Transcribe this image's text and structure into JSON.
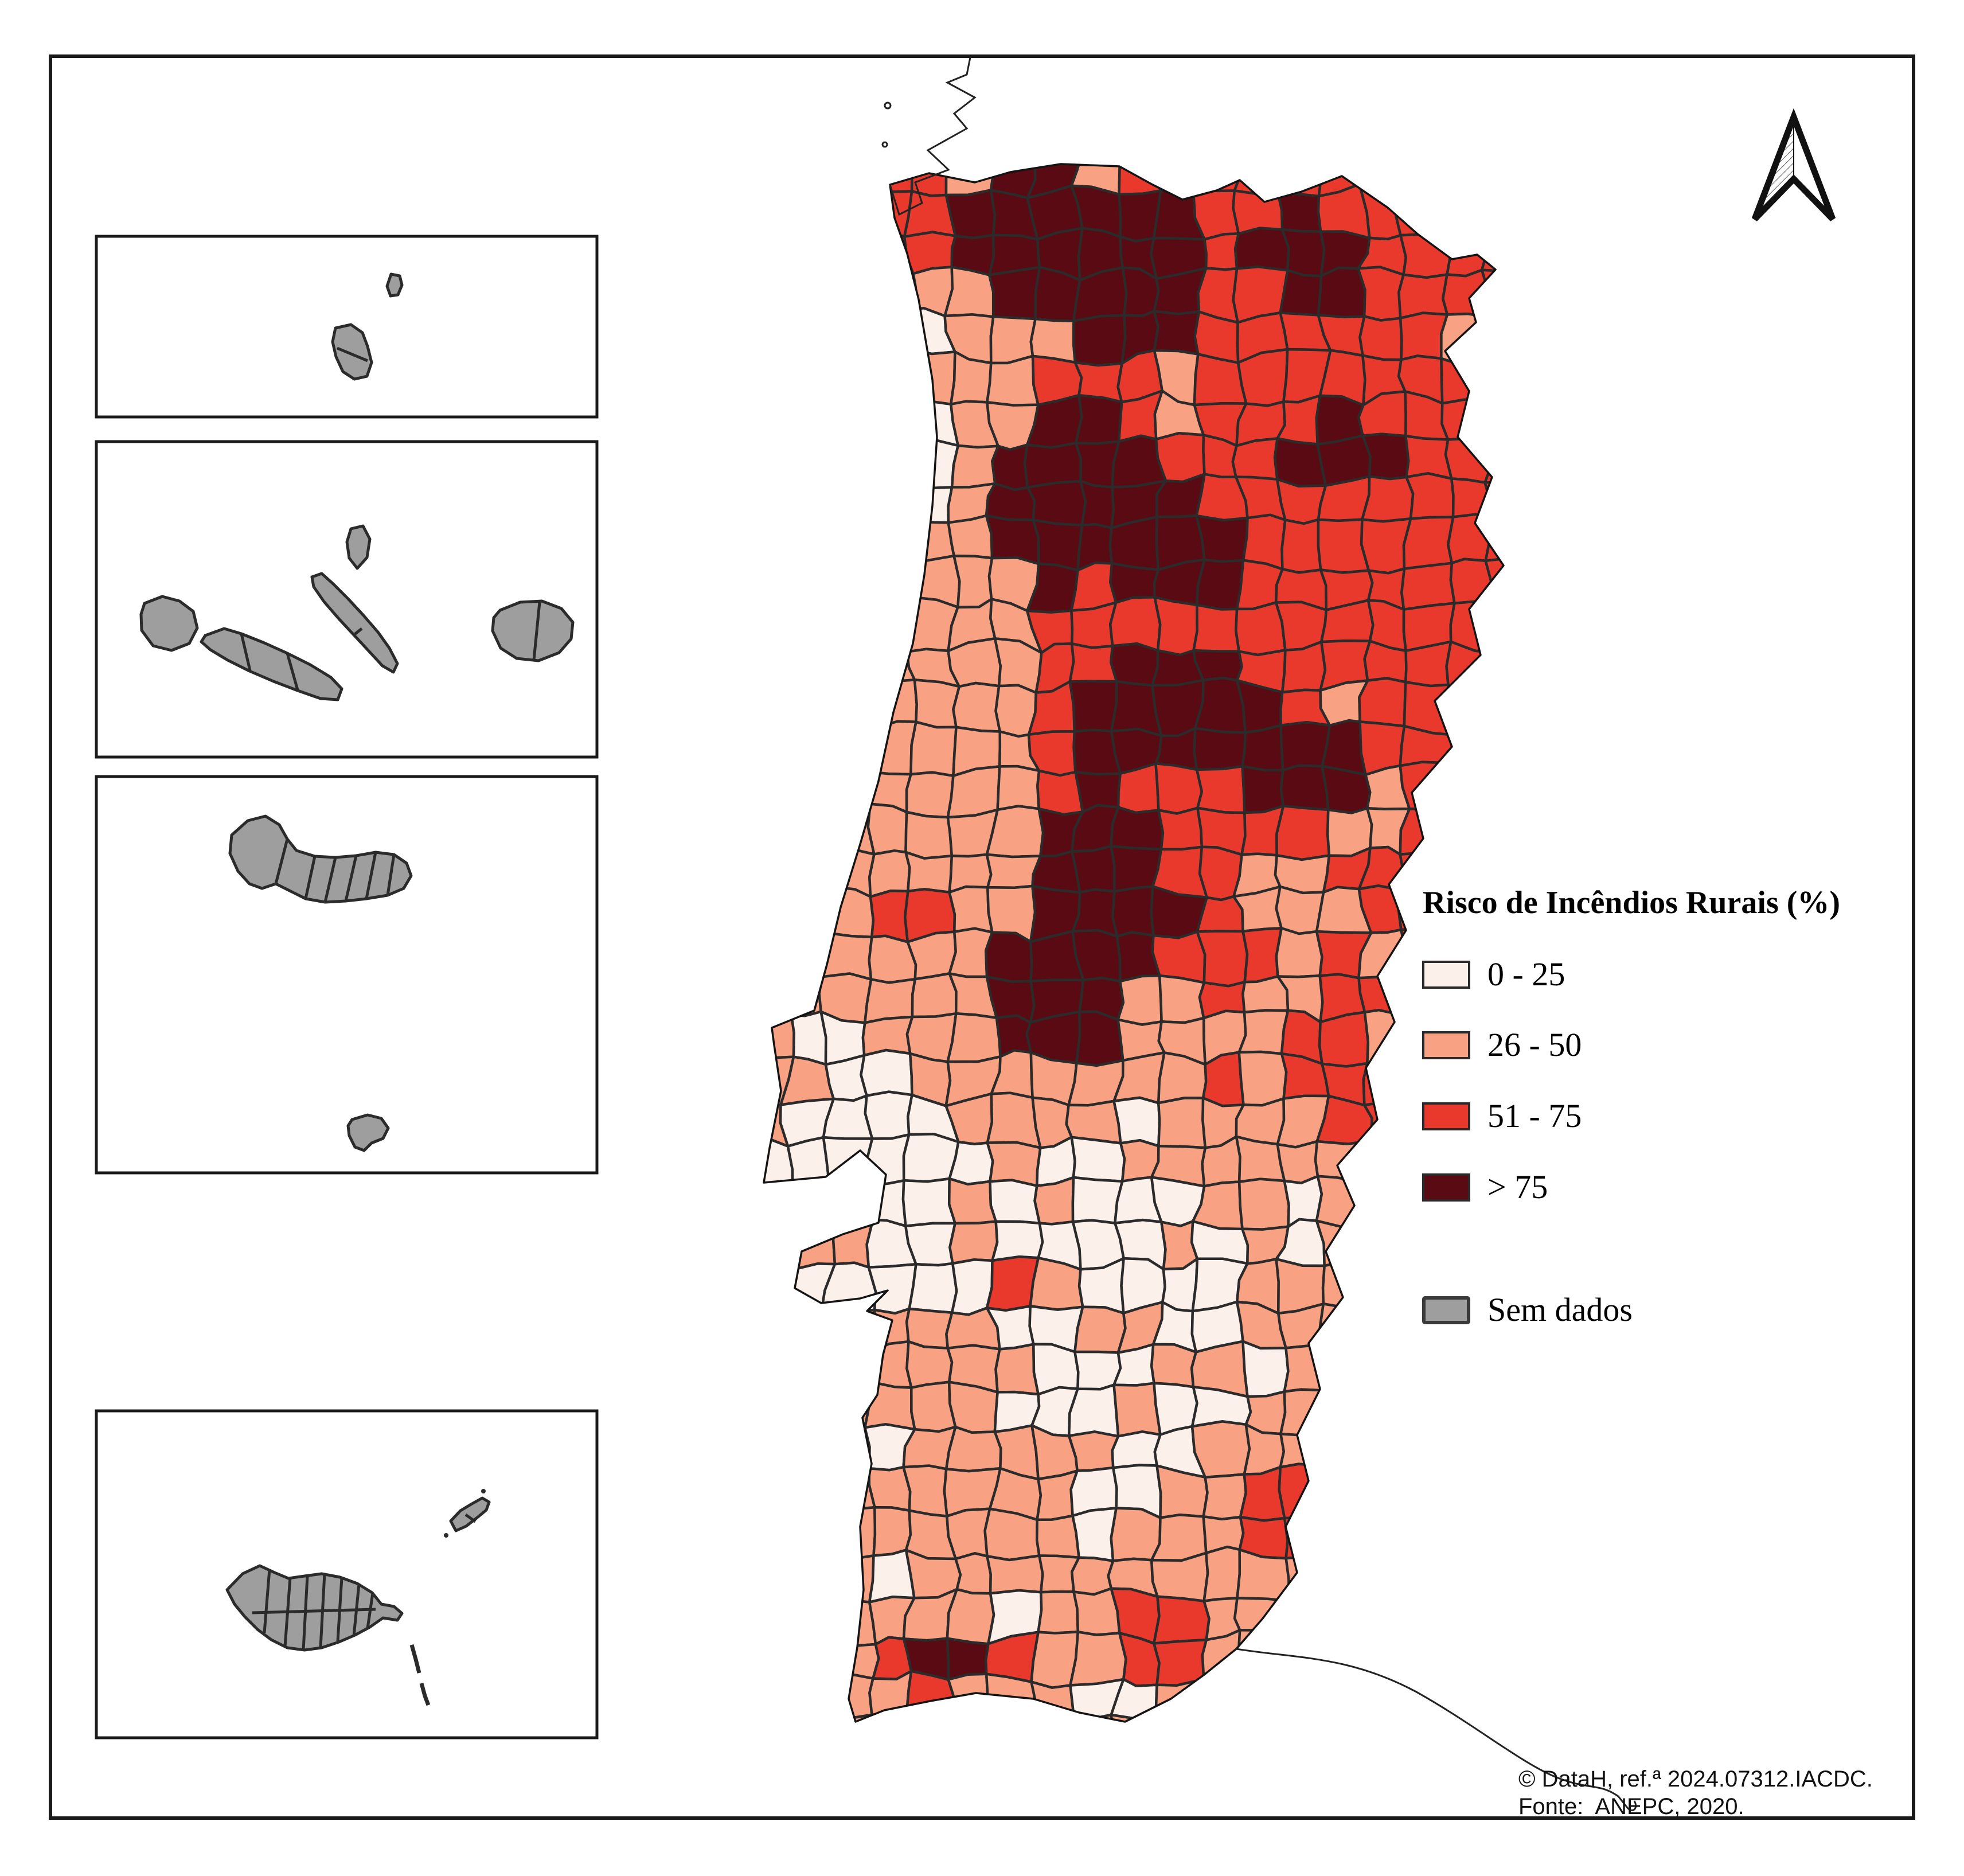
{
  "legend": {
    "title": "Risco de Incêndios Rurais (%)",
    "items": [
      {
        "label": "0 - 25",
        "color": "#FCF0EA"
      },
      {
        "label": "26 - 50",
        "color": "#F9A283"
      },
      {
        "label": "51 - 75",
        "color": "#E8392C"
      },
      {
        "label": "> 75",
        "color": "#5A0A12"
      }
    ],
    "no_data": {
      "label": "Sem dados",
      "color": "#9E9E9E"
    }
  },
  "attribution": {
    "line1": "© DataH, ref.ª 2024.07312.IACDC.",
    "line2": "Fonte:  ANEPC, 2020."
  },
  "colors": {
    "boundary": "#2B2B2B",
    "coast": "#141414",
    "frame": "#1A1A1A",
    "thin_coastline": "#222222",
    "inset_island": "#9E9E9E",
    "background": "#FFFFFF"
  }
}
